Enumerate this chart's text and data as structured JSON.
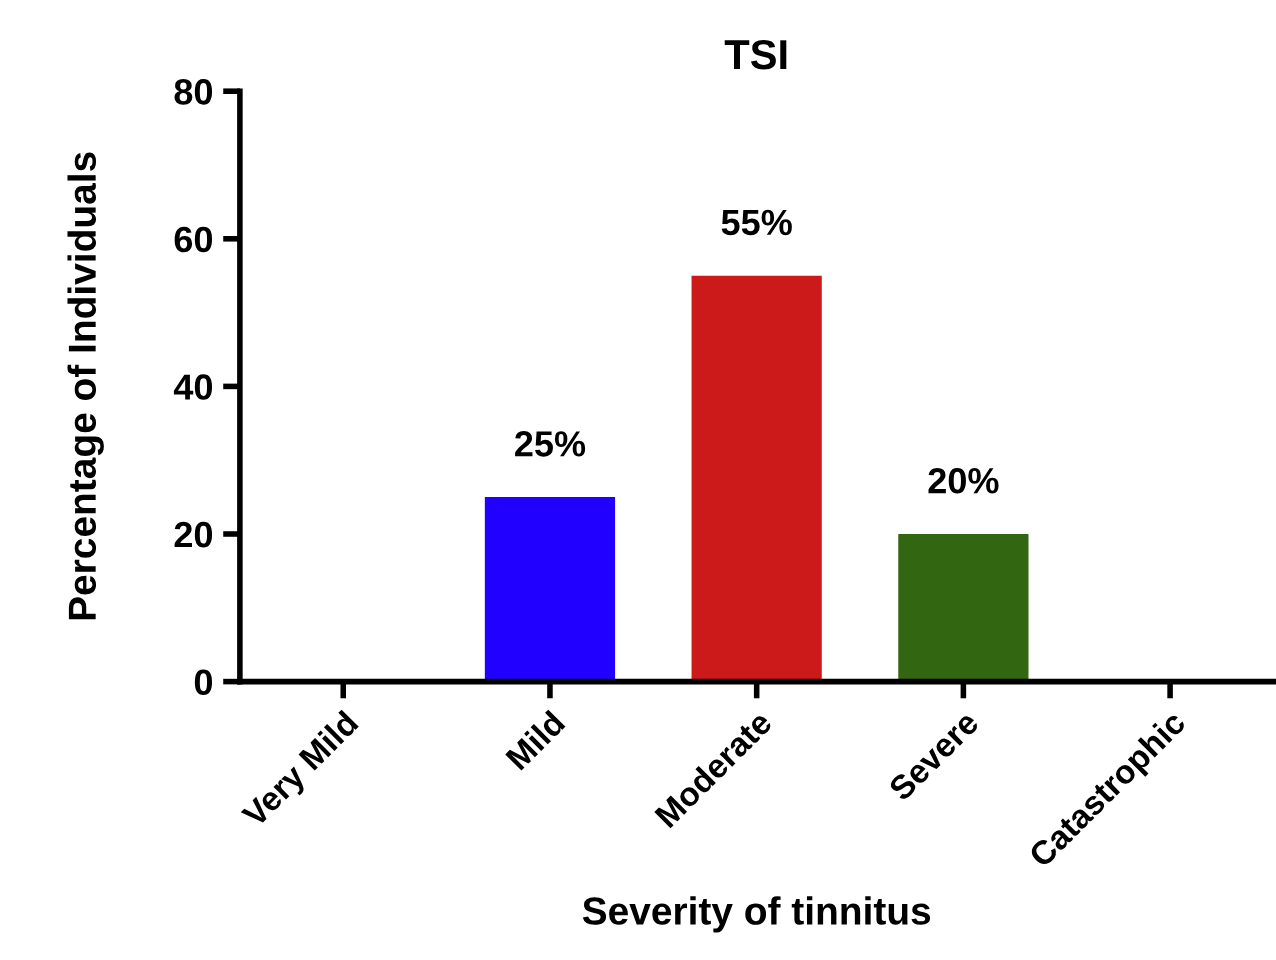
{
  "chart_data": {
    "type": "bar",
    "title": "TSI",
    "xlabel": "Severity of tinnitus",
    "ylabel": "Percentage of Individuals",
    "categories": [
      "Very Mild",
      "Mild",
      "Moderate",
      "Severe",
      "Catastrophic"
    ],
    "values": [
      0,
      25,
      55,
      20,
      0
    ],
    "colors": [
      "#2200ff",
      "#2200ff",
      "#cc1a1a",
      "#336611",
      "#336611"
    ],
    "value_labels": [
      null,
      "25%",
      "55%",
      "20%",
      null
    ],
    "ylim": [
      0,
      80
    ],
    "yticks": [
      0,
      20,
      40,
      60,
      80
    ],
    "grid": false,
    "legend": false
  }
}
